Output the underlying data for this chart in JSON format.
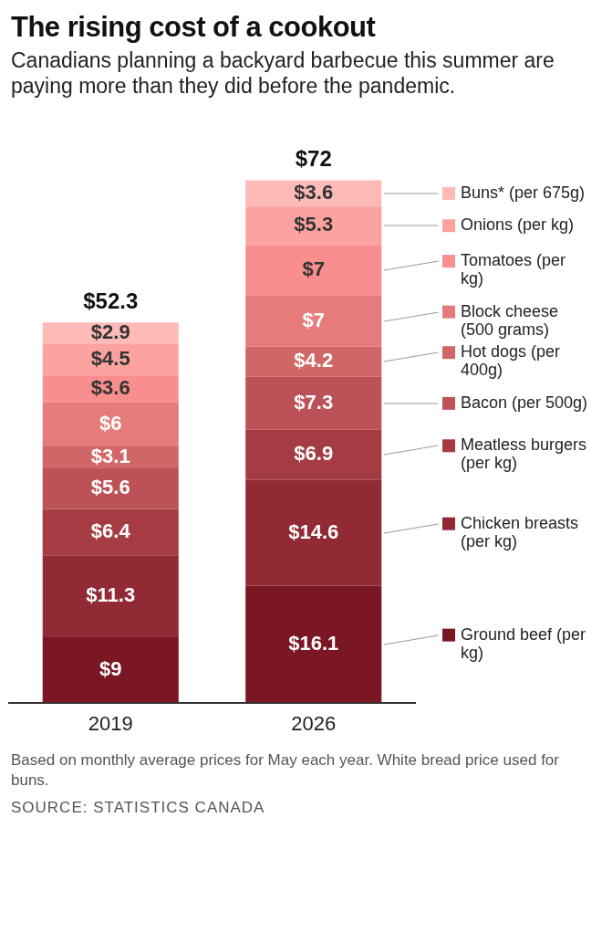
{
  "chart_data": {
    "type": "bar",
    "title": "The rising cost of a cookout",
    "subtitle": "Canadians planning a backyard barbecue this summer are paying more than they did before the pandemic.",
    "categories": [
      "2019",
      "2026"
    ],
    "stacked": true,
    "totals": [
      "$52.3",
      "$72"
    ],
    "tick_labels": "x",
    "legend": "right",
    "series": [
      {
        "name": "Ground beef (per kg)",
        "color": "#7b1623",
        "values": [
          9,
          16.1
        ],
        "value_labels": [
          "$9",
          "$16.1"
        ]
      },
      {
        "name": "Chicken breasts (per kg)",
        "color": "#912a35",
        "values": [
          11.3,
          14.6
        ],
        "value_labels": [
          "$11.3",
          "$14.6"
        ]
      },
      {
        "name": "Meatless burgers (per kg)",
        "color": "#a63c43",
        "values": [
          6.4,
          6.9
        ],
        "value_labels": [
          "$6.4",
          "$6.9"
        ]
      },
      {
        "name": "Bacon (per 500g)",
        "color": "#bc5257",
        "values": [
          5.6,
          7.3
        ],
        "value_labels": [
          "$5.6",
          "$7.3"
        ]
      },
      {
        "name": "Hot dogs (per 400g)",
        "color": "#d06666",
        "values": [
          3.1,
          4.2
        ],
        "value_labels": [
          "$3.1",
          "$4.2"
        ]
      },
      {
        "name": "Block cheese (500 grams)",
        "color": "#e67b7b",
        "values": [
          6,
          7
        ],
        "value_labels": [
          "$6",
          "$7"
        ]
      },
      {
        "name": "Tomatoes (per kg)",
        "color": "#f98e8e",
        "values": [
          3.6,
          7
        ],
        "value_labels": [
          "$3.6",
          "$7"
        ]
      },
      {
        "name": "Onions (per kg)",
        "color": "#fca39f",
        "values": [
          4.5,
          5.3
        ],
        "value_labels": [
          "$4.5",
          "$5.3"
        ]
      },
      {
        "name": "Buns* (per 675g)",
        "color": "#fdbab7",
        "values": [
          2.9,
          3.6
        ],
        "value_labels": [
          "$2.9",
          "$3.6"
        ]
      }
    ],
    "annotations": [
      "Based on monthly average prices for May each year. White bread price used for buns.",
      "SOURCE: STATISTICS CANADA"
    ]
  }
}
